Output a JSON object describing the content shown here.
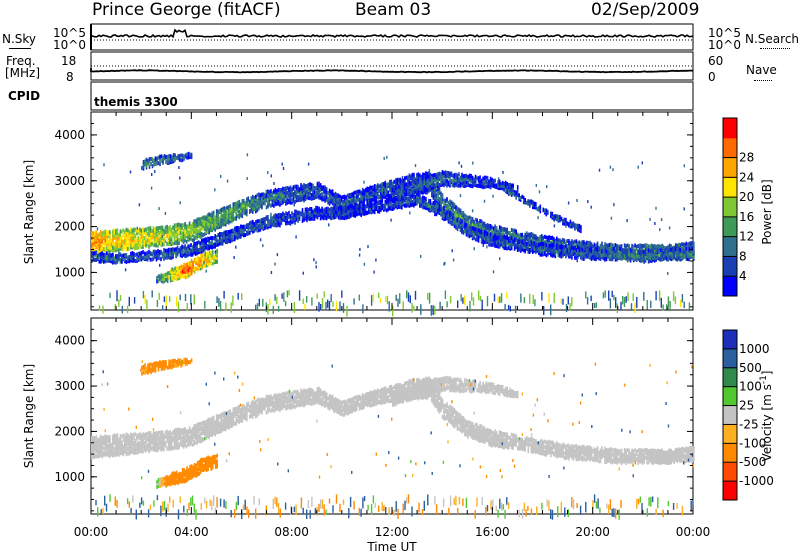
{
  "header": {
    "title": "Prince George (fitACF)",
    "beam": "Beam 03",
    "date": "02/Sep/2009"
  },
  "strip_labels": {
    "nsky": "N.Sky",
    "nsky_ticks": [
      "10^5",
      "10^0"
    ],
    "nsearch": "N.Search",
    "nsearch_ticks": [
      "10^5",
      "10^0"
    ],
    "freq": "Freq.",
    "freq_unit": "[MHz]",
    "freq_ticks": [
      "18",
      "8"
    ],
    "nave": "Nave",
    "nave_ticks": [
      "60",
      "0"
    ],
    "cpid": "CPID",
    "cpid_value": "themis 3300"
  },
  "colors": {
    "power_scale": [
      "#0000ff",
      "#1a3fb5",
      "#2f6f8f",
      "#3f9a5a",
      "#7fc832",
      "#ffe400",
      "#ffa500",
      "#ff6a00",
      "#ff0000"
    ],
    "velocity_scale": [
      "#1d2fb8",
      "#2a5fa0",
      "#2f8a4c",
      "#50c830",
      "#c4c4c4",
      "#ffb020",
      "#ff8a00",
      "#ff4a00",
      "#ff0000"
    ],
    "ground_scatter": "#c4c4c4"
  },
  "chart_data": [
    {
      "type": "heatmap",
      "title": "",
      "parameter": "Power",
      "xlabel": "Time UT",
      "ylabel": "Slant Range [km]",
      "x_ticks": [
        "00:00",
        "04:00",
        "08:00",
        "12:00",
        "16:00",
        "20:00",
        "00:00"
      ],
      "y_ticks": [
        "1000",
        "2000",
        "3000",
        "4000"
      ],
      "xlim": [
        0,
        24
      ],
      "ylim": [
        180,
        4500
      ],
      "colorbar": {
        "label": "Power [dB]",
        "ticks": [
          "4",
          "8",
          "12",
          "16",
          "20",
          "24",
          "28"
        ],
        "range": [
          0,
          30
        ]
      },
      "bands": [
        {
          "x": [
            0.0,
            1.0,
            2.0,
            3.0,
            4.0,
            5.0,
            6.0,
            7.0,
            8.0,
            9.0,
            10.0,
            11.0,
            12.0,
            13.0,
            13.5,
            14.0,
            15.0,
            16.0,
            17.0,
            18.0,
            19.0,
            20.0,
            21.0,
            22.0,
            23.0,
            24.0
          ],
          "y": [
            1650,
            1700,
            1750,
            1800,
            1900,
            2150,
            2400,
            2600,
            2700,
            2800,
            2500,
            2700,
            2850,
            2950,
            2950,
            2500,
            2050,
            1850,
            1750,
            1650,
            1550,
            1500,
            1450,
            1450,
            1450,
            1500
          ],
          "width_km": [
            450,
            450,
            420,
            400,
            420,
            400,
            350,
            350,
            350,
            350,
            300,
            300,
            350,
            450,
            450,
            400,
            350,
            350,
            300,
            300,
            300,
            300,
            300,
            300,
            300,
            300
          ],
          "power_db": [
            24,
            20,
            20,
            18,
            16,
            14,
            12,
            10,
            8,
            8,
            8,
            8,
            8,
            8,
            8,
            10,
            12,
            10,
            10,
            10,
            10,
            10,
            12,
            12,
            12,
            12
          ]
        },
        {
          "x": [
            0.0,
            1.0,
            2.0,
            3.0,
            4.0,
            5.0,
            6.0,
            7.0,
            8.0,
            9.0,
            10.0,
            11.0,
            12.0,
            13.0,
            14.0,
            15.0,
            16.0,
            17.0,
            18.0,
            19.0,
            20.0,
            21.0,
            22.0,
            23.0,
            24.0
          ],
          "y": [
            1350,
            1300,
            1350,
            1400,
            1500,
            1700,
            1900,
            2100,
            2200,
            2300,
            2300,
            2400,
            2500,
            2600,
            2300,
            1900,
            1700,
            1600,
            1500,
            1450,
            1400,
            1400,
            1350,
            1400,
            1400
          ],
          "width_km": [
            200,
            200,
            200,
            200,
            250,
            250,
            250,
            250,
            250,
            250,
            250,
            250,
            250,
            250,
            250,
            250,
            250,
            250,
            250,
            250,
            250,
            250,
            250,
            250,
            250
          ],
          "power_db": [
            8,
            8,
            8,
            8,
            8,
            8,
            8,
            8,
            6,
            6,
            6,
            6,
            6,
            8,
            8,
            8,
            8,
            8,
            8,
            8,
            8,
            10,
            10,
            10,
            10
          ]
        },
        {
          "x": [
            2.6,
            3.2,
            3.8,
            4.4,
            5.0
          ],
          "y": [
            850,
            950,
            1050,
            1250,
            1350
          ],
          "width_km": [
            150,
            250,
            300,
            300,
            250
          ],
          "power_db": [
            10,
            20,
            26,
            22,
            18
          ]
        },
        {
          "x": [
            2.0,
            2.7,
            3.4,
            4.0
          ],
          "y": [
            3350,
            3450,
            3500,
            3550
          ],
          "width_km": [
            200,
            200,
            150,
            100
          ],
          "power_db": [
            12,
            10,
            10,
            8
          ]
        },
        {
          "x": [
            12.0,
            13.0,
            14.0,
            15.0,
            16.0,
            17.0
          ],
          "y": [
            2700,
            2900,
            3050,
            3000,
            2950,
            2800
          ],
          "width_km": [
            250,
            300,
            300,
            250,
            200,
            150
          ],
          "power_db": [
            8,
            8,
            8,
            8,
            6,
            6
          ]
        },
        {
          "x": [
            16.5,
            17.5,
            18.5,
            19.5
          ],
          "y": [
            2800,
            2500,
            2200,
            1950
          ],
          "width_km": [
            120,
            120,
            120,
            120
          ],
          "power_db": [
            8,
            8,
            8,
            6
          ]
        }
      ]
    },
    {
      "type": "heatmap",
      "title": "",
      "parameter": "Velocity",
      "xlabel": "Time UT",
      "ylabel": "Slant Range [km]",
      "x_ticks": [
        "00:00",
        "04:00",
        "08:00",
        "12:00",
        "16:00",
        "20:00",
        "00:00"
      ],
      "y_ticks": [
        "1000",
        "2000",
        "3000",
        "4000"
      ],
      "xlim": [
        0,
        24
      ],
      "ylim": [
        180,
        4500
      ],
      "colorbar": {
        "label": "Velocity [m s^-1]",
        "ticks": [
          "1000",
          "500",
          "100",
          "25",
          "-25",
          "-100",
          "-500",
          "-1000"
        ]
      },
      "note_ground_scatter_grey": true,
      "bands": [
        {
          "x": [
            0.0,
            1.0,
            2.0,
            3.0,
            4.0,
            5.0,
            6.0,
            7.0,
            8.0,
            9.0,
            10.0,
            11.0,
            12.0,
            13.0,
            13.5,
            14.0,
            15.0,
            16.0,
            17.0,
            18.0,
            19.0,
            20.0,
            21.0,
            22.0,
            23.0,
            24.0
          ],
          "y": [
            1650,
            1700,
            1750,
            1800,
            1900,
            2150,
            2400,
            2600,
            2700,
            2800,
            2500,
            2700,
            2850,
            2950,
            2950,
            2500,
            2050,
            1850,
            1750,
            1650,
            1550,
            1500,
            1450,
            1450,
            1450,
            1500
          ],
          "width_km": [
            450,
            450,
            420,
            400,
            420,
            400,
            350,
            350,
            350,
            350,
            300,
            300,
            350,
            450,
            450,
            400,
            350,
            350,
            300,
            300,
            300,
            300,
            300,
            300,
            300,
            300
          ],
          "velocity": [
            0,
            0,
            0,
            0,
            0,
            0,
            0,
            0,
            0,
            0,
            0,
            0,
            0,
            0,
            0,
            0,
            0,
            0,
            0,
            0,
            0,
            0,
            0,
            0,
            0,
            0
          ]
        },
        {
          "x": [
            2.6,
            3.2,
            3.8,
            4.4,
            5.0
          ],
          "y": [
            850,
            950,
            1050,
            1250,
            1350
          ],
          "width_km": [
            150,
            250,
            300,
            300,
            250
          ],
          "velocity": [
            50,
            -300,
            -450,
            -400,
            -300
          ]
        },
        {
          "x": [
            2.0,
            2.7,
            3.4,
            4.0
          ],
          "y": [
            3350,
            3450,
            3500,
            3550
          ],
          "width_km": [
            200,
            200,
            150,
            100
          ],
          "velocity": [
            -100,
            -150,
            -100,
            -100
          ]
        },
        {
          "x": [
            12.0,
            13.0,
            14.0,
            15.0,
            16.0,
            17.0
          ],
          "y": [
            2700,
            2900,
            3050,
            3000,
            2950,
            2800
          ],
          "width_km": [
            250,
            300,
            300,
            250,
            200,
            150
          ],
          "velocity": [
            0,
            0,
            0,
            0,
            0,
            0
          ]
        }
      ]
    }
  ]
}
